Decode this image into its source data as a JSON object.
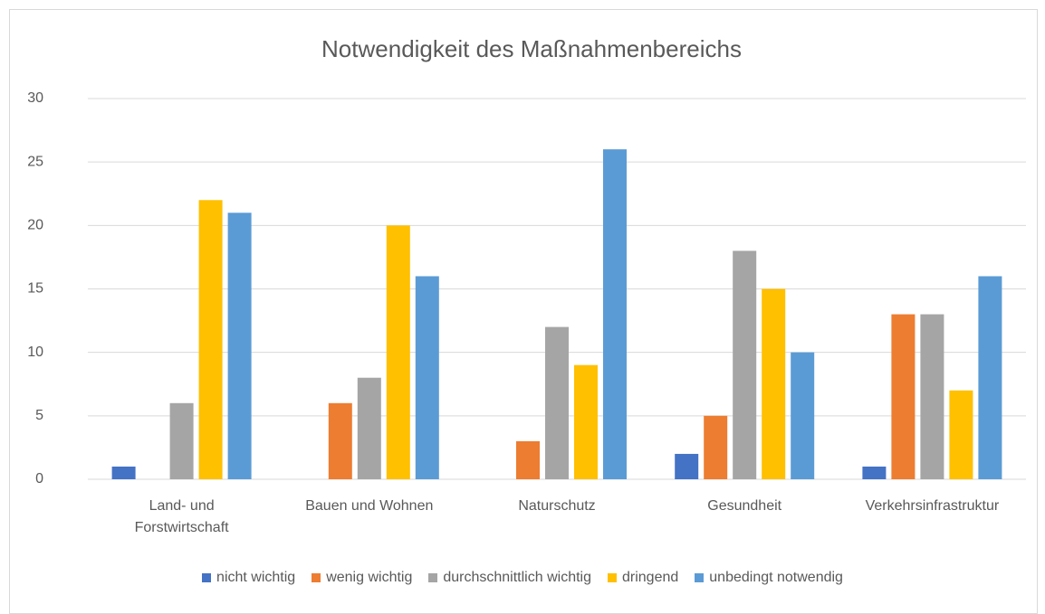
{
  "chart_data": {
    "type": "bar",
    "title": "Notwendigkeit des Maßnahmenbereichs",
    "categories": [
      "Land- und Forstwirtschaft",
      "Bauen und Wohnen",
      "Naturschutz",
      "Gesundheit",
      "Verkehrsinfrastruktur"
    ],
    "series": [
      {
        "name": "nicht wichtig",
        "color": "#4472c4",
        "values": [
          1,
          0,
          0,
          2,
          1
        ]
      },
      {
        "name": "wenig wichtig",
        "color": "#ed7d31",
        "values": [
          0,
          6,
          3,
          5,
          13
        ]
      },
      {
        "name": "durchschnittlich wichtig",
        "color": "#a5a5a5",
        "values": [
          6,
          8,
          12,
          18,
          13
        ]
      },
      {
        "name": "dringend",
        "color": "#ffc000",
        "values": [
          22,
          20,
          9,
          15,
          7
        ]
      },
      {
        "name": "unbedingt notwendig",
        "color": "#5b9bd5",
        "values": [
          21,
          16,
          26,
          10,
          16
        ]
      }
    ],
    "ylim": [
      0,
      30
    ],
    "yticks": [
      0,
      5,
      10,
      15,
      20,
      25,
      30
    ],
    "grid": true,
    "legend": "bottom"
  }
}
